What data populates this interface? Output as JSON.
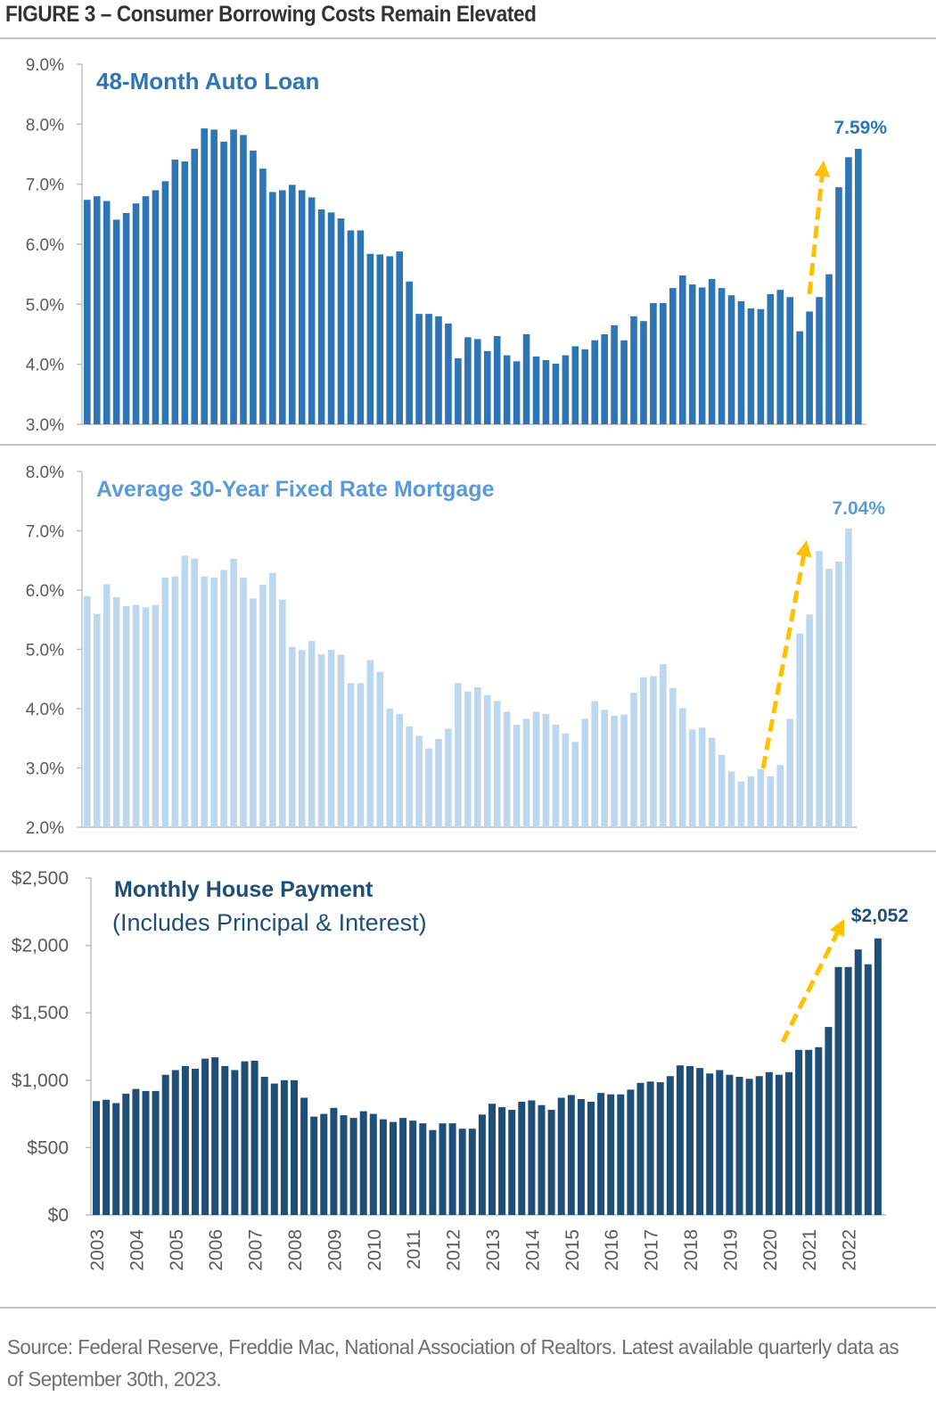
{
  "figure": {
    "title": "FIGURE 3 – Consumer Borrowing Costs Remain Elevated",
    "source_note": "Source: Federal Reserve, Freddie Mac, National Association of Realtors. Latest available quarterly data as of September 30th, 2023."
  },
  "colors": {
    "auto": "#2e75b6",
    "mortgage": "#bdd7ee",
    "mortgage_title": "#5b9bd5",
    "house": "#1f4e79",
    "arrow": "#ffc000",
    "axis_text": "#595959",
    "axis_line": "#bfbfbf"
  },
  "chart_data": [
    {
      "type": "bar",
      "title": "48-Month Auto Loan",
      "xlabel": "",
      "ylabel": "",
      "ylim": [
        3.0,
        9.0
      ],
      "yticks": [
        "3.0%",
        "4.0%",
        "5.0%",
        "6.0%",
        "7.0%",
        "8.0%",
        "9.0%"
      ],
      "ytick_values": [
        3,
        4,
        5,
        6,
        7,
        8,
        9
      ],
      "frequency": "quarterly",
      "start": "2003 Q1",
      "end_label": "7.59%",
      "annotation": "upward dashed arrow (2021–2022)",
      "values": [
        6.74,
        6.8,
        6.72,
        6.41,
        6.52,
        6.68,
        6.8,
        6.9,
        7.05,
        7.41,
        7.38,
        7.59,
        7.93,
        7.91,
        7.71,
        7.91,
        7.82,
        7.56,
        7.26,
        6.87,
        6.9,
        6.99,
        6.9,
        6.78,
        6.58,
        6.53,
        6.43,
        6.23,
        6.23,
        5.84,
        5.83,
        5.8,
        5.88,
        5.38,
        4.84,
        4.84,
        4.8,
        4.68,
        4.1,
        4.45,
        4.42,
        4.22,
        4.47,
        4.15,
        4.05,
        4.5,
        4.13,
        4.07,
        4.01,
        4.15,
        4.3,
        4.25,
        4.4,
        4.5,
        4.65,
        4.4,
        4.8,
        4.72,
        5.02,
        5.02,
        5.27,
        5.48,
        5.33,
        5.28,
        5.42,
        5.27,
        5.15,
        5.05,
        4.93,
        4.92,
        5.17,
        5.24,
        5.12,
        4.55,
        4.88,
        5.12,
        5.5,
        6.95,
        7.45,
        7.59
      ],
      "grid": false
    },
    {
      "type": "bar",
      "title": "Average 30-Year Fixed Rate Mortgage",
      "xlabel": "",
      "ylabel": "",
      "ylim": [
        2.0,
        8.0
      ],
      "yticks": [
        "2.0%",
        "3.0%",
        "4.0%",
        "5.0%",
        "6.0%",
        "7.0%",
        "8.0%"
      ],
      "ytick_values": [
        2,
        3,
        4,
        5,
        6,
        7,
        8
      ],
      "frequency": "quarterly",
      "start": "2003 Q1",
      "end_label": "7.04%",
      "annotation": "upward dashed arrow (2020–2022)",
      "values": [
        5.9,
        5.6,
        6.1,
        5.88,
        5.73,
        5.75,
        5.71,
        5.75,
        6.21,
        6.23,
        6.58,
        6.53,
        6.23,
        6.21,
        6.34,
        6.53,
        6.21,
        5.86,
        6.09,
        6.29,
        5.84,
        5.04,
        4.99,
        5.14,
        4.92,
        4.99,
        4.91,
        4.43,
        4.43,
        4.82,
        4.62,
        4.0,
        3.91,
        3.7,
        3.54,
        3.33,
        3.49,
        3.66,
        4.43,
        4.29,
        4.36,
        4.23,
        4.13,
        3.95,
        3.73,
        3.83,
        3.95,
        3.91,
        3.73,
        3.58,
        3.44,
        3.83,
        4.13,
        3.98,
        3.88,
        3.9,
        4.27,
        4.53,
        4.55,
        4.75,
        4.35,
        4.01,
        3.65,
        3.68,
        3.51,
        3.22,
        2.94,
        2.77,
        2.86,
        2.98,
        2.86,
        3.05,
        3.83,
        5.27,
        5.59,
        6.66,
        6.36,
        6.48,
        7.04
      ],
      "grid": false
    },
    {
      "type": "bar",
      "title": "Monthly House Payment",
      "subtitle": "(Includes Principal & Interest)",
      "xlabel": "",
      "ylabel": "",
      "ylim": [
        0,
        2500
      ],
      "yticks": [
        "$0",
        "$500",
        "$1,000",
        "$1,500",
        "$2,000",
        "$2,500"
      ],
      "ytick_values": [
        0,
        500,
        1000,
        1500,
        2000,
        2500
      ],
      "frequency": "quarterly",
      "start": "2003 Q1",
      "end_label": "$2,052",
      "annotation": "upward dashed arrow (2020–2022)",
      "values": [
        845,
        855,
        830,
        900,
        935,
        920,
        920,
        1040,
        1075,
        1105,
        1085,
        1160,
        1170,
        1105,
        1075,
        1140,
        1145,
        1025,
        975,
        1000,
        1000,
        870,
        730,
        750,
        795,
        740,
        720,
        770,
        750,
        710,
        690,
        720,
        700,
        680,
        630,
        680,
        680,
        640,
        640,
        745,
        825,
        800,
        780,
        840,
        850,
        815,
        780,
        870,
        890,
        860,
        840,
        905,
        895,
        895,
        930,
        980,
        990,
        985,
        1030,
        1110,
        1105,
        1090,
        1050,
        1075,
        1040,
        1025,
        1010,
        1030,
        1060,
        1040,
        1060,
        1225,
        1225,
        1245,
        1395,
        1840,
        1840,
        1970,
        1860,
        2052
      ],
      "xticks": [
        "2003",
        "2004",
        "2005",
        "2006",
        "2007",
        "2008",
        "2009",
        "2010",
        "2011",
        "2012",
        "2013",
        "2014",
        "2015",
        "2016",
        "2017",
        "2018",
        "2019",
        "2020",
        "2021",
        "2022"
      ],
      "grid": false
    }
  ]
}
